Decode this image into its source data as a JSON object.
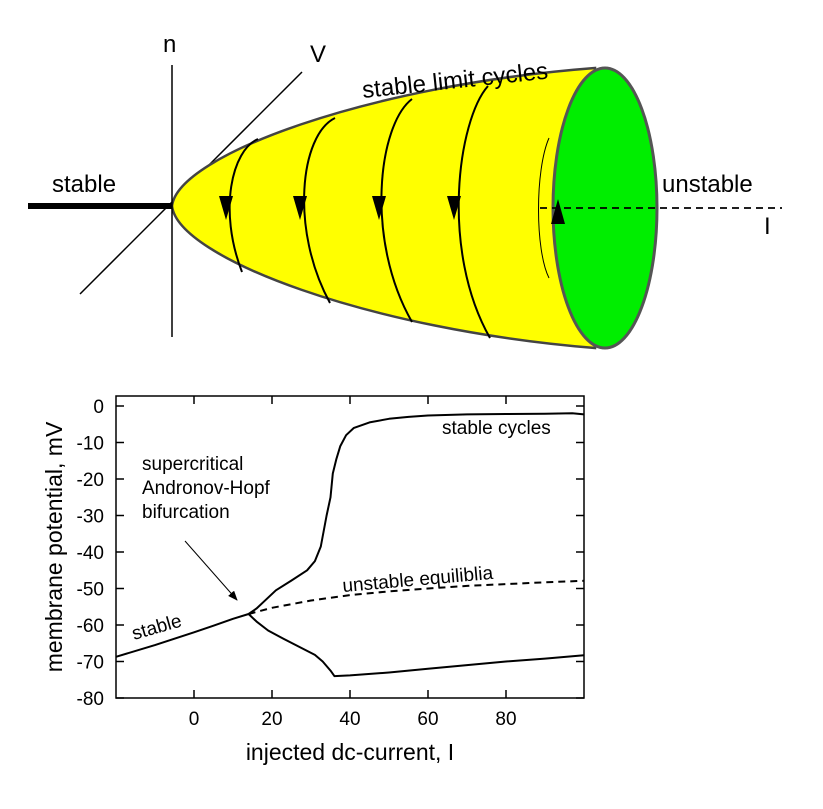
{
  "top_diagram": {
    "labels": {
      "n_axis": "n",
      "v_axis": "V",
      "i_axis": "I",
      "stable": "stable",
      "unstable": "unstable",
      "limit_cycles": "stable limit cycles"
    },
    "colors": {
      "cone_fill": "#ffff00",
      "end_cap": "#00ee00",
      "outline": "#555555"
    }
  },
  "chart_data": {
    "type": "line",
    "title": "",
    "xlabel": "injected dc-current, I",
    "ylabel": "membrane potential, mV",
    "xlim": [
      -20,
      100
    ],
    "ylim": [
      -80,
      0
    ],
    "xticks": [
      0,
      20,
      40,
      60,
      80
    ],
    "yticks": [
      0,
      -10,
      -20,
      -30,
      -40,
      -50,
      -60,
      -70,
      -80
    ],
    "grid": false,
    "series": [
      {
        "name": "stable",
        "style": "solid",
        "points": [
          [
            -20,
            -68.7
          ],
          [
            -10,
            -65.5
          ],
          [
            0,
            -62
          ],
          [
            5,
            -60.2
          ],
          [
            10,
            -58.3
          ],
          [
            14,
            -57
          ]
        ]
      },
      {
        "name": "unstable equiliblia",
        "style": "dashed",
        "points": [
          [
            14,
            -57
          ],
          [
            20,
            -55.3
          ],
          [
            30,
            -53.3
          ],
          [
            40,
            -51.8
          ],
          [
            50,
            -50.8
          ],
          [
            60,
            -50
          ],
          [
            70,
            -49.3
          ],
          [
            80,
            -48.8
          ],
          [
            90,
            -48.3
          ],
          [
            100,
            -47.9
          ]
        ]
      },
      {
        "name": "stable cycles",
        "style": "solid",
        "points": [
          [
            14,
            -57
          ],
          [
            16,
            -55.5
          ],
          [
            18,
            -53.5
          ],
          [
            21,
            -50.5
          ],
          [
            25,
            -47.8
          ],
          [
            29,
            -45
          ],
          [
            31,
            -42.5
          ],
          [
            32.5,
            -38.5
          ],
          [
            34,
            -30
          ],
          [
            35,
            -25
          ],
          [
            35.6,
            -18.5
          ],
          [
            36.5,
            -14.5
          ],
          [
            37.5,
            -11
          ],
          [
            39,
            -8
          ],
          [
            41,
            -6
          ],
          [
            45,
            -4.5
          ],
          [
            50,
            -3.5
          ],
          [
            55,
            -3
          ],
          [
            60,
            -2.6
          ],
          [
            70,
            -2.3
          ],
          [
            80,
            -2.2
          ],
          [
            90,
            -2.1
          ],
          [
            97,
            -2
          ],
          [
            100,
            -2.3
          ]
        ]
      },
      {
        "name": "",
        "style": "solid",
        "points": [
          [
            14,
            -57
          ],
          [
            16,
            -59
          ],
          [
            19,
            -61.5
          ],
          [
            23,
            -63.8
          ],
          [
            27,
            -66
          ],
          [
            31,
            -68.2
          ],
          [
            33,
            -70
          ],
          [
            35,
            -72.5
          ],
          [
            36,
            -74
          ],
          [
            40,
            -73.8
          ],
          [
            50,
            -73
          ],
          [
            60,
            -72
          ],
          [
            70,
            -71
          ],
          [
            80,
            -70
          ],
          [
            90,
            -69.2
          ],
          [
            100,
            -68.3
          ]
        ]
      }
    ],
    "annotations": {
      "stable_cycles": "stable cycles",
      "unstable": "unstable equiliblia",
      "stable": "stable",
      "bifurcation": [
        "supercritical",
        "Andronov-Hopf",
        "bifurcation"
      ]
    }
  }
}
